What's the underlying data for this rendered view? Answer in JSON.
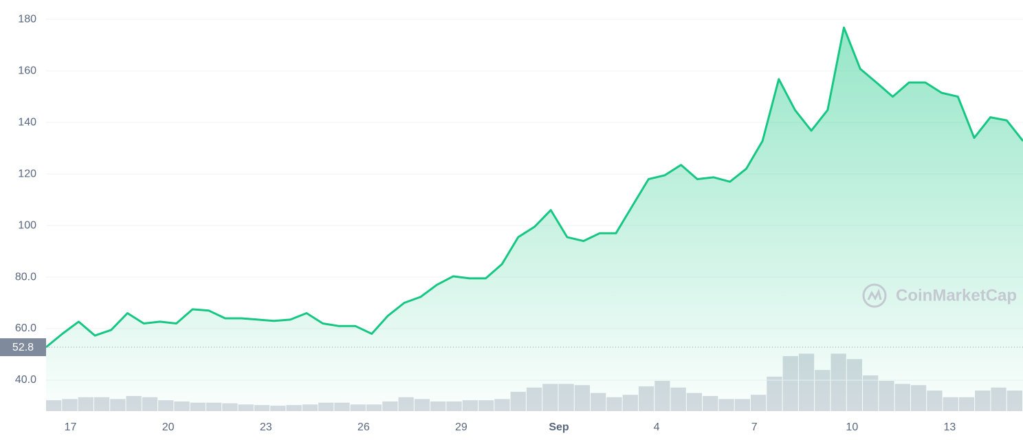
{
  "chart_data": [
    {
      "type": "line",
      "color": "#16c784",
      "area": true,
      "grid": true,
      "x": [
        "08-16 06:00",
        "08-16 18:00",
        "08-17 06:00",
        "08-17 18:00",
        "08-18 06:00",
        "08-18 18:00",
        "08-19 06:00",
        "08-19 18:00",
        "08-20 06:00",
        "08-20 18:00",
        "08-21 06:00",
        "08-21 18:00",
        "08-22 06:00",
        "08-22 18:00",
        "08-23 06:00",
        "08-23 18:00",
        "08-24 06:00",
        "08-24 18:00",
        "08-25 06:00",
        "08-25 18:00",
        "08-26 06:00",
        "08-26 18:00",
        "08-27 06:00",
        "08-27 18:00",
        "08-28 06:00",
        "08-28 18:00",
        "08-29 06:00",
        "08-29 18:00",
        "08-30 06:00",
        "08-30 18:00",
        "08-31 06:00",
        "08-31 18:00",
        "09-01 06:00",
        "09-01 18:00",
        "09-02 06:00",
        "09-02 18:00",
        "09-03 06:00",
        "09-03 18:00",
        "09-04 06:00",
        "09-04 18:00",
        "09-05 06:00",
        "09-05 18:00",
        "09-06 06:00",
        "09-06 18:00",
        "09-07 06:00",
        "09-07 18:00",
        "09-08 06:00",
        "09-08 18:00",
        "09-09 06:00",
        "09-09 18:00",
        "09-10 06:00",
        "09-10 18:00",
        "09-11 06:00",
        "09-11 18:00",
        "09-12 06:00",
        "09-12 18:00",
        "09-13 06:00",
        "09-13 18:00",
        "09-14 06:00",
        "09-14 18:00",
        "09-15 06:00"
      ],
      "values": [
        52.8,
        58,
        62.7,
        57.3,
        59.5,
        66,
        62,
        62.7,
        62,
        67.5,
        67,
        64,
        64,
        63.5,
        63,
        63.5,
        66,
        62,
        61,
        61,
        58,
        65,
        70,
        72.3,
        77,
        80.3,
        79.5,
        79.5,
        85,
        95.5,
        99.5,
        106,
        95.5,
        94,
        97,
        97,
        107.5,
        118,
        119.5,
        123.5,
        118,
        118.7,
        117,
        122,
        132.8,
        156.8,
        144.8,
        136.8,
        144.8,
        176.8,
        160.8,
        155.5,
        150,
        155.5,
        155.5,
        151.5,
        150,
        134,
        142,
        140.8,
        132.8
      ],
      "xlim": [
        "08-16 06:00",
        "09-15 06:00"
      ],
      "xticks": [
        {
          "value": "08-17 00:00",
          "label": "17"
        },
        {
          "value": "08-20 00:00",
          "label": "20"
        },
        {
          "value": "08-23 00:00",
          "label": "23"
        },
        {
          "value": "08-26 00:00",
          "label": "26"
        },
        {
          "value": "08-29 00:00",
          "label": "29"
        },
        {
          "value": "09-01 00:00",
          "label": "Sep"
        },
        {
          "value": "09-04 00:00",
          "label": "4"
        },
        {
          "value": "09-07 00:00",
          "label": "7"
        },
        {
          "value": "09-10 00:00",
          "label": "10"
        },
        {
          "value": "09-13 00:00",
          "label": "13"
        }
      ],
      "ylim": [
        28,
        187.5
      ],
      "yticks": [
        {
          "value": 40,
          "label": "40.0"
        },
        {
          "value": 60,
          "label": "60.0"
        },
        {
          "value": 80,
          "label": "80.0"
        },
        100,
        120,
        140,
        160,
        180
      ],
      "baseline": 52.8,
      "watermark": "CoinMarketCap"
    },
    {
      "type": "bar",
      "color": "#d6dae1",
      "ylim": [
        0,
        100
      ],
      "values": [
        18,
        20,
        23,
        23,
        20,
        25,
        23,
        18,
        16,
        14,
        14,
        13,
        11,
        10,
        9,
        10,
        11,
        14,
        14,
        11,
        11,
        16,
        23,
        20,
        16,
        16,
        18,
        18,
        20,
        32,
        39,
        45,
        45,
        43,
        30,
        23,
        27,
        41,
        50,
        39,
        30,
        25,
        20,
        20,
        27,
        57,
        91,
        95,
        68,
        95,
        86,
        59,
        50,
        45,
        43,
        34,
        23,
        23,
        34,
        39,
        34
      ]
    }
  ]
}
